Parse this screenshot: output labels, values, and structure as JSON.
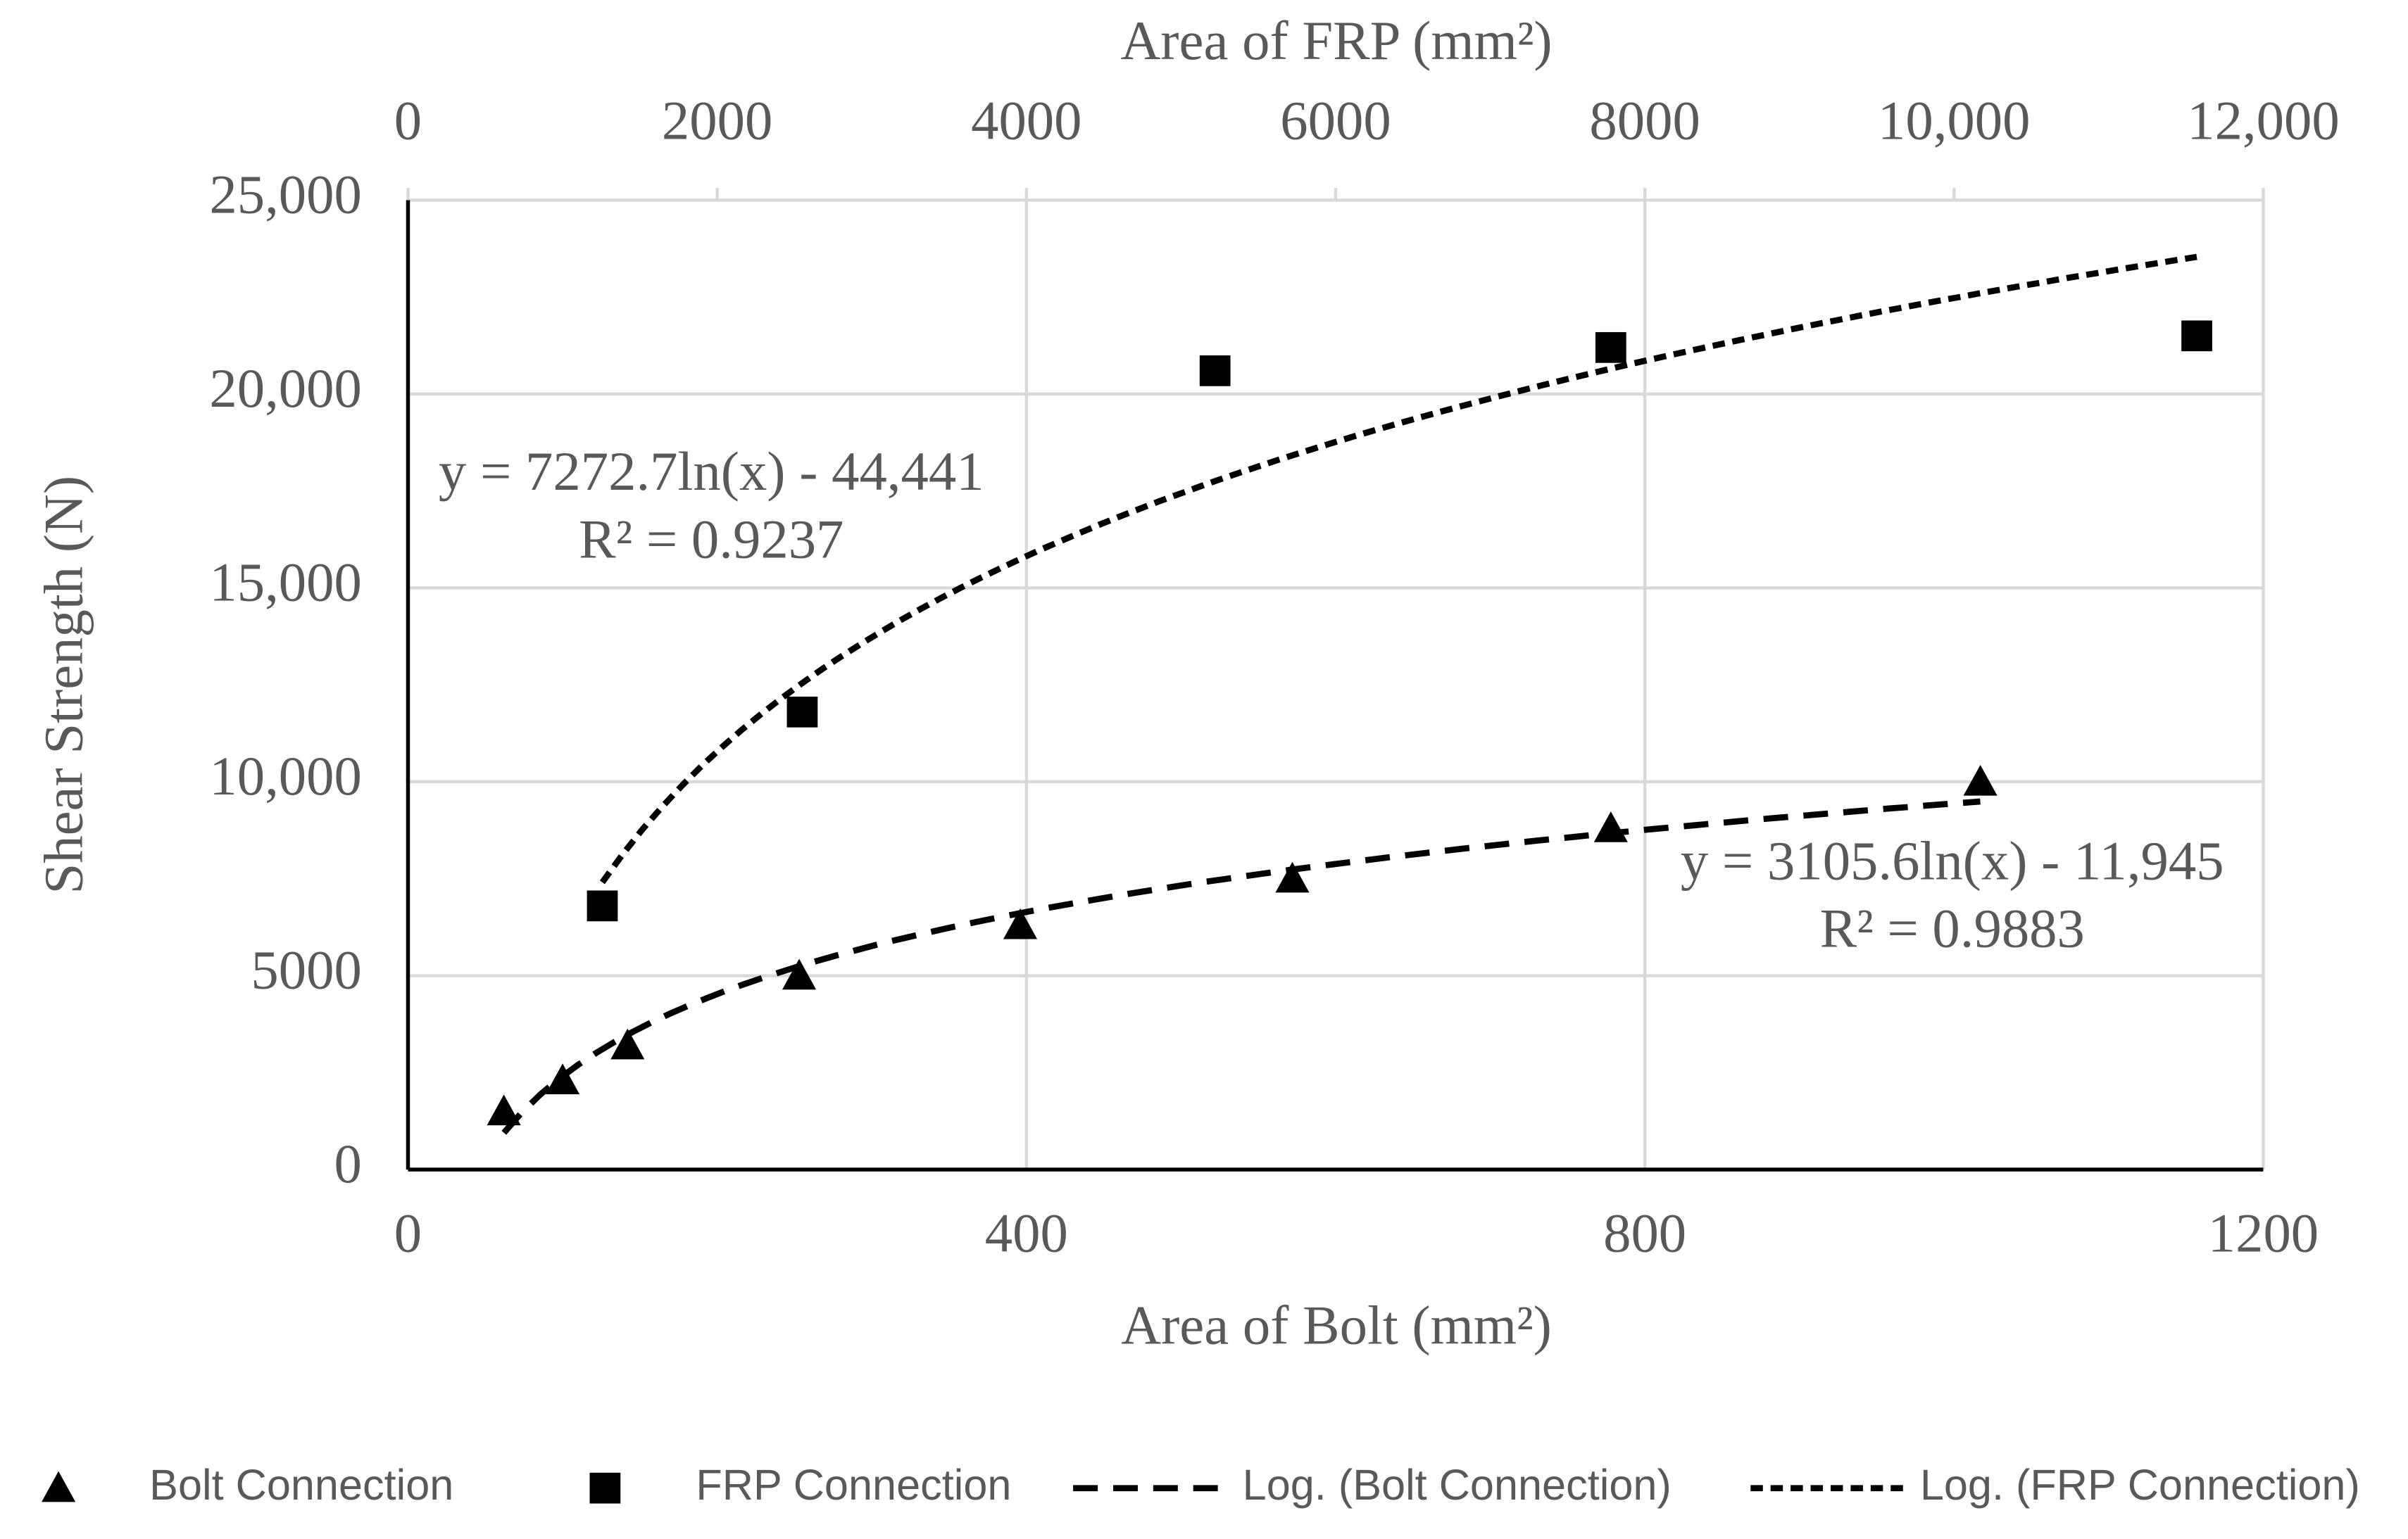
{
  "chart_data": {
    "type": "scatter",
    "xlabel": "Area of Bolt (mm²)",
    "x2label": "Area of FRP (mm²)",
    "ylabel": "Shear Strength (N)",
    "xlim": [
      0,
      1200
    ],
    "xticks": [
      0,
      400,
      800,
      1200
    ],
    "x2lim": [
      0,
      12000
    ],
    "x2ticks": [
      0,
      2000,
      4000,
      6000,
      8000,
      {
        "value": 10000,
        "label": "10,000"
      },
      {
        "value": 12000,
        "label": "12,000"
      }
    ],
    "ylim": [
      0,
      25000
    ],
    "yticks": [
      0,
      5000,
      {
        "value": 10000,
        "label": "10,000"
      },
      {
        "value": 15000,
        "label": "15,000"
      },
      {
        "value": 20000,
        "label": "20,000"
      },
      {
        "value": 25000,
        "label": "25,000"
      }
    ],
    "grid": true,
    "legend": "bottom",
    "series": [
      {
        "name": "Bolt Connection",
        "color": "#000000",
        "marker": "triangle",
        "x": [
          62,
          100,
          142,
          253,
          396,
          572,
          778,
          1017
        ],
        "values": [
          1500,
          2300,
          3200,
          5000,
          6300,
          7500,
          8800,
          10000
        ]
      },
      {
        "name": "FRP Connection",
        "color": "#000000",
        "marker": "square",
        "axis": "x2",
        "x": [
          1257,
          2550,
          5220,
          7780,
          11570
        ],
        "values": [
          6800,
          11800,
          20600,
          21200,
          21500
        ]
      }
    ],
    "trendlines": [
      {
        "name": "Log. (Bolt Connection)",
        "equation": "y = 3105.6ln(x) - 11,945",
        "r2": "R² = 0.9883"
      },
      {
        "name": "Log. (FRP Connection)",
        "equation": "y = 7272.7ln(x) - 44,441",
        "r2": "R² = 0.9237"
      }
    ]
  }
}
